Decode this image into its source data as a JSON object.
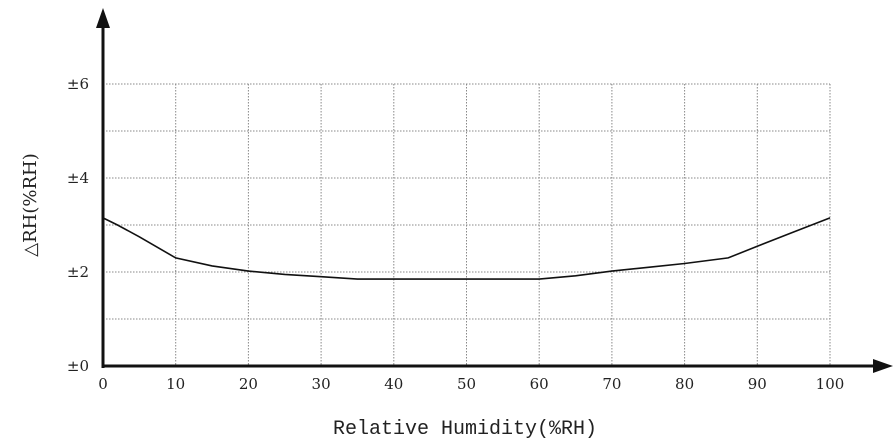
{
  "chart_data": {
    "type": "line",
    "title": "",
    "xlabel": "Relative Humidity(%RH)",
    "ylabel": "△RH(%RH)",
    "xlim": [
      0,
      100
    ],
    "ylim": [
      0,
      6
    ],
    "x_ticks": [
      0,
      10,
      20,
      30,
      40,
      50,
      60,
      70,
      80,
      90,
      100
    ],
    "y_ticks": [
      0,
      2,
      4,
      6
    ],
    "y_tick_labels": [
      "±0",
      "±2",
      "±4",
      "±6"
    ],
    "grid": true,
    "series": [
      {
        "x": [
          0,
          2,
          5,
          10,
          15,
          20,
          25,
          30,
          35,
          40,
          45,
          50,
          55,
          60,
          65,
          70,
          75,
          80,
          86,
          90,
          95,
          100
        ],
        "y": [
          3.15,
          3.0,
          2.75,
          2.3,
          2.13,
          2.02,
          1.95,
          1.9,
          1.85,
          1.85,
          1.85,
          1.85,
          1.85,
          1.85,
          1.92,
          2.02,
          2.1,
          2.18,
          2.3,
          2.55,
          2.85,
          3.15
        ]
      }
    ],
    "colors": {
      "line": "#111111",
      "grid": "#888888",
      "axis": "#111111"
    }
  }
}
